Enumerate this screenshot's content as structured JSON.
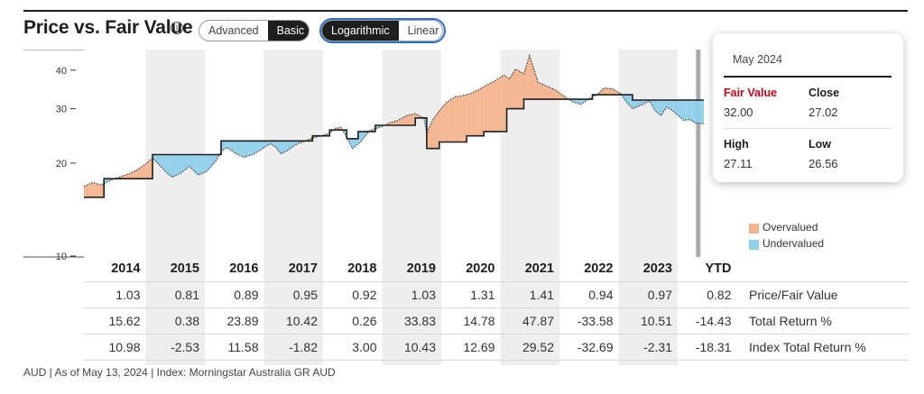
{
  "header": {
    "title": "Price vs. Fair Value",
    "info_symbol": "i",
    "view_toggle": [
      "Advanced",
      "Basic"
    ],
    "view_selected": "Basic",
    "scale_toggle": [
      "Logarithmic",
      "Linear"
    ],
    "scale_selected": "Logarithmic"
  },
  "colors": {
    "overvalued": "#f4b48e",
    "undervalued": "#8fd0ea",
    "price_line": "#444444",
    "fair_value_line": "#1e1e1e",
    "band": "#eeeeee",
    "hover_line": "#aaaaaa",
    "tooltip_fair_value": "#d0021b"
  },
  "legend": {
    "overvalued": "Overvalued",
    "undervalued": "Undervalued"
  },
  "tooltip": {
    "title": "May 2024",
    "fair_value_label": "Fair Value",
    "fair_value": "32.00",
    "close_label": "Close",
    "close": "27.02",
    "high_label": "High",
    "high": "27.11",
    "low_label": "Low",
    "low": "26.56"
  },
  "chart_data": {
    "type": "area",
    "y_scale": "log",
    "y_ticks": [
      "40",
      "30",
      "20",
      "10"
    ],
    "ylim": [
      10,
      46
    ],
    "x_range": [
      2013.6,
      2024.45
    ],
    "years": [
      "2014",
      "2015",
      "2016",
      "2017",
      "2018",
      "2019",
      "2020",
      "2021",
      "2022",
      "2023",
      "YTD"
    ],
    "shaded_years": [
      "2015",
      "2017",
      "2019",
      "2021",
      "2023"
    ],
    "hover_date": 2024.36,
    "series": [
      {
        "name": "Fair Value",
        "points": [
          [
            2013.6,
            15.5
          ],
          [
            2013.95,
            15.5
          ],
          [
            2013.95,
            17.8
          ],
          [
            2014.8,
            17.8
          ],
          [
            2014.8,
            21.3
          ],
          [
            2016.0,
            21.3
          ],
          [
            2016.0,
            23.6
          ],
          [
            2017.6,
            23.6
          ],
          [
            2017.6,
            24.5
          ],
          [
            2017.9,
            24.5
          ],
          [
            2017.9,
            25.6
          ],
          [
            2018.2,
            25.6
          ],
          [
            2018.2,
            24.0
          ],
          [
            2018.4,
            24.0
          ],
          [
            2018.4,
            25.3
          ],
          [
            2018.7,
            25.3
          ],
          [
            2018.7,
            26.5
          ],
          [
            2019.4,
            26.5
          ],
          [
            2019.4,
            28.0
          ],
          [
            2019.6,
            28.0
          ],
          [
            2019.6,
            22.3
          ],
          [
            2019.82,
            22.3
          ],
          [
            2019.82,
            23.4
          ],
          [
            2020.3,
            23.4
          ],
          [
            2020.3,
            24.5
          ],
          [
            2020.6,
            24.5
          ],
          [
            2020.6,
            25.3
          ],
          [
            2021.0,
            25.3
          ],
          [
            2021.0,
            30.0
          ],
          [
            2021.3,
            30.0
          ],
          [
            2021.3,
            32.2
          ],
          [
            2022.5,
            32.2
          ],
          [
            2022.5,
            33.3
          ],
          [
            2023.2,
            33.3
          ],
          [
            2023.2,
            32.0
          ],
          [
            2024.45,
            32.0
          ]
        ]
      },
      {
        "name": "Price",
        "points": [
          [
            2013.6,
            16.8
          ],
          [
            2013.75,
            17.3
          ],
          [
            2013.9,
            17.0
          ],
          [
            2014.1,
            17.7
          ],
          [
            2014.25,
            18.1
          ],
          [
            2014.4,
            18.5
          ],
          [
            2014.55,
            19.1
          ],
          [
            2014.7,
            20.0
          ],
          [
            2014.8,
            20.8
          ],
          [
            2014.9,
            19.9
          ],
          [
            2015.05,
            18.6
          ],
          [
            2015.15,
            18.0
          ],
          [
            2015.3,
            18.6
          ],
          [
            2015.45,
            19.5
          ],
          [
            2015.6,
            18.3
          ],
          [
            2015.75,
            18.8
          ],
          [
            2015.9,
            20.2
          ],
          [
            2016.0,
            21.7
          ],
          [
            2016.1,
            22.5
          ],
          [
            2016.25,
            21.5
          ],
          [
            2016.4,
            20.9
          ],
          [
            2016.55,
            21.3
          ],
          [
            2016.7,
            22.1
          ],
          [
            2016.85,
            23.1
          ],
          [
            2016.95,
            22.6
          ],
          [
            2017.05,
            21.4
          ],
          [
            2017.15,
            21.9
          ],
          [
            2017.3,
            22.9
          ],
          [
            2017.45,
            23.5
          ],
          [
            2017.6,
            24.1
          ],
          [
            2017.75,
            24.5
          ],
          [
            2017.9,
            25.0
          ],
          [
            2018.0,
            25.9
          ],
          [
            2018.1,
            26.1
          ],
          [
            2018.2,
            24.2
          ],
          [
            2018.3,
            22.3
          ],
          [
            2018.45,
            23.5
          ],
          [
            2018.6,
            25.5
          ],
          [
            2018.8,
            26.2
          ],
          [
            2018.95,
            27.0
          ],
          [
            2019.1,
            27.5
          ],
          [
            2019.25,
            28.5
          ],
          [
            2019.4,
            28.9
          ],
          [
            2019.55,
            28.0
          ],
          [
            2019.6,
            25.0
          ],
          [
            2019.7,
            27.5
          ],
          [
            2019.85,
            30.0
          ],
          [
            2019.95,
            31.5
          ],
          [
            2020.1,
            32.8
          ],
          [
            2020.2,
            33.0
          ],
          [
            2020.35,
            33.5
          ],
          [
            2020.5,
            34.5
          ],
          [
            2020.65,
            35.8
          ],
          [
            2020.8,
            37.0
          ],
          [
            2020.95,
            38.5
          ],
          [
            2021.05,
            37.5
          ],
          [
            2021.15,
            40.3
          ],
          [
            2021.3,
            39.0
          ],
          [
            2021.4,
            44.5
          ],
          [
            2021.55,
            36.5
          ],
          [
            2021.7,
            35.5
          ],
          [
            2021.85,
            34.5
          ],
          [
            2022.0,
            33.0
          ],
          [
            2022.15,
            31.6
          ],
          [
            2022.3,
            31.0
          ],
          [
            2022.45,
            32.4
          ],
          [
            2022.6,
            33.5
          ],
          [
            2022.7,
            35.0
          ],
          [
            2022.85,
            34.8
          ],
          [
            2023.0,
            33.5
          ],
          [
            2023.1,
            31.5
          ],
          [
            2023.2,
            30.0
          ],
          [
            2023.35,
            30.8
          ],
          [
            2023.5,
            31.8
          ],
          [
            2023.6,
            29.5
          ],
          [
            2023.7,
            28.5
          ],
          [
            2023.8,
            30.4
          ],
          [
            2023.9,
            29.6
          ],
          [
            2024.0,
            28.5
          ],
          [
            2024.1,
            27.5
          ],
          [
            2024.2,
            27.7
          ],
          [
            2024.3,
            27.0
          ],
          [
            2024.45,
            26.8
          ]
        ]
      }
    ]
  },
  "table": {
    "rows": [
      {
        "label": "Price/Fair Value",
        "values": [
          "1.03",
          "0.81",
          "0.89",
          "0.95",
          "0.92",
          "1.03",
          "1.31",
          "1.41",
          "0.94",
          "0.97",
          "0.82"
        ]
      },
      {
        "label": "Total Return %",
        "values": [
          "15.62",
          "0.38",
          "23.89",
          "10.42",
          "0.26",
          "33.83",
          "14.78",
          "47.87",
          "-33.58",
          "10.51",
          "-14.43"
        ]
      },
      {
        "label": "Index Total Return %",
        "values": [
          "10.98",
          "-2.53",
          "11.58",
          "-1.82",
          "3.00",
          "10.43",
          "12.69",
          "29.52",
          "-32.69",
          "-2.31",
          "-18.31"
        ]
      }
    ]
  },
  "footer": "AUD | As of May 13, 2024 | Index: Morningstar Australia GR AUD"
}
